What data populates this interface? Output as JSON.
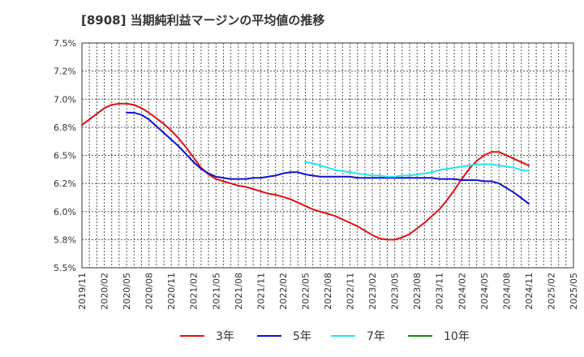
{
  "header": {
    "title": "[8908]  当期純利益マージンの平均値の推移"
  },
  "chart_data": {
    "type": "line",
    "title": "[8908]  当期純利益マージンの平均値の推移",
    "xlabel": "",
    "ylabel": "",
    "ylim": [
      5.5,
      7.5
    ],
    "y_unit": "%",
    "yticks": [
      "7.5%",
      "7.2%",
      "7.0%",
      "6.8%",
      "6.5%",
      "6.2%",
      "6.0%",
      "5.8%",
      "5.5%"
    ],
    "xticks": [
      "2019/11",
      "2020/02",
      "2020/05",
      "2020/08",
      "2020/11",
      "2021/02",
      "2021/05",
      "2021/08",
      "2021/11",
      "2022/02",
      "2022/05",
      "2022/08",
      "2022/11",
      "2023/02",
      "2023/05",
      "2023/08",
      "2023/11",
      "2024/02",
      "2024/05",
      "2024/08",
      "2024/11",
      "2025/02",
      "2025/05"
    ],
    "grid": true,
    "legend_position": "bottom",
    "series": [
      {
        "name": "3年",
        "color": "#dd1111",
        "x": [
          "2019/11",
          "2019/12",
          "2020/01",
          "2020/02",
          "2020/03",
          "2020/04",
          "2020/05",
          "2020/06",
          "2020/07",
          "2020/08",
          "2020/09",
          "2020/10",
          "2020/11",
          "2020/12",
          "2021/01",
          "2021/02",
          "2021/03",
          "2021/04",
          "2021/05",
          "2021/06",
          "2021/07",
          "2021/08",
          "2021/09",
          "2021/10",
          "2021/11",
          "2021/12",
          "2022/01",
          "2022/02",
          "2022/03",
          "2022/04",
          "2022/05",
          "2022/06",
          "2022/07",
          "2022/08",
          "2022/09",
          "2022/10",
          "2022/11",
          "2022/12",
          "2023/01",
          "2023/02",
          "2023/03",
          "2023/04",
          "2023/05",
          "2023/06",
          "2023/07",
          "2023/08",
          "2023/09",
          "2023/10",
          "2023/11",
          "2023/12",
          "2024/01",
          "2024/02",
          "2024/03",
          "2024/04",
          "2024/05",
          "2024/06",
          "2024/07",
          "2024/08",
          "2024/09",
          "2024/10",
          "2024/11"
        ],
        "values": [
          6.77,
          6.82,
          6.87,
          6.92,
          6.95,
          6.96,
          6.96,
          6.95,
          6.92,
          6.88,
          6.83,
          6.78,
          6.72,
          6.65,
          6.57,
          6.48,
          6.39,
          6.33,
          6.29,
          6.27,
          6.25,
          6.23,
          6.22,
          6.2,
          6.18,
          6.16,
          6.15,
          6.13,
          6.11,
          6.08,
          6.05,
          6.02,
          6.0,
          5.98,
          5.96,
          5.93,
          5.9,
          5.87,
          5.83,
          5.79,
          5.76,
          5.75,
          5.75,
          5.77,
          5.8,
          5.85,
          5.9,
          5.96,
          6.02,
          6.1,
          6.19,
          6.29,
          6.38,
          6.45,
          6.5,
          6.53,
          6.53,
          6.5,
          6.47,
          6.44,
          6.41
        ]
      },
      {
        "name": "5年",
        "color": "#1111cc",
        "x": [
          "2020/05",
          "2020/06",
          "2020/07",
          "2020/08",
          "2020/09",
          "2020/10",
          "2020/11",
          "2020/12",
          "2021/01",
          "2021/02",
          "2021/03",
          "2021/04",
          "2021/05",
          "2021/06",
          "2021/07",
          "2021/08",
          "2021/09",
          "2021/10",
          "2021/11",
          "2021/12",
          "2022/01",
          "2022/02",
          "2022/03",
          "2022/04",
          "2022/05",
          "2022/06",
          "2022/07",
          "2022/08",
          "2022/09",
          "2022/10",
          "2022/11",
          "2022/12",
          "2023/01",
          "2023/02",
          "2023/03",
          "2023/04",
          "2023/05",
          "2023/06",
          "2023/07",
          "2023/08",
          "2023/09",
          "2023/10",
          "2023/11",
          "2023/12",
          "2024/01",
          "2024/02",
          "2024/03",
          "2024/04",
          "2024/05",
          "2024/06",
          "2024/07",
          "2024/08",
          "2024/09",
          "2024/10",
          "2024/11"
        ],
        "values": [
          6.88,
          6.88,
          6.86,
          6.82,
          6.76,
          6.7,
          6.64,
          6.58,
          6.51,
          6.44,
          6.38,
          6.34,
          6.31,
          6.3,
          6.29,
          6.29,
          6.29,
          6.3,
          6.3,
          6.31,
          6.32,
          6.34,
          6.35,
          6.35,
          6.33,
          6.32,
          6.31,
          6.31,
          6.31,
          6.31,
          6.31,
          6.3,
          6.3,
          6.3,
          6.3,
          6.3,
          6.3,
          6.3,
          6.3,
          6.3,
          6.3,
          6.3,
          6.29,
          6.29,
          6.29,
          6.28,
          6.28,
          6.28,
          6.27,
          6.27,
          6.25,
          6.21,
          6.17,
          6.12,
          6.07
        ]
      },
      {
        "name": "7年",
        "color": "#22e5ee",
        "x": [
          "2022/05",
          "2022/06",
          "2022/07",
          "2022/08",
          "2022/09",
          "2022/10",
          "2022/11",
          "2022/12",
          "2023/01",
          "2023/02",
          "2023/03",
          "2023/04",
          "2023/05",
          "2023/06",
          "2023/07",
          "2023/08",
          "2023/09",
          "2023/10",
          "2023/11",
          "2023/12",
          "2024/01",
          "2024/02",
          "2024/03",
          "2024/04",
          "2024/05",
          "2024/06",
          "2024/07",
          "2024/08",
          "2024/09",
          "2024/10",
          "2024/11"
        ],
        "values": [
          6.44,
          6.43,
          6.41,
          6.39,
          6.37,
          6.36,
          6.35,
          6.34,
          6.33,
          6.32,
          6.32,
          6.31,
          6.31,
          6.32,
          6.32,
          6.33,
          6.34,
          6.35,
          6.37,
          6.38,
          6.39,
          6.4,
          6.41,
          6.42,
          6.42,
          6.42,
          6.41,
          6.4,
          6.39,
          6.37,
          6.36
        ]
      },
      {
        "name": "10年",
        "color": "#118811",
        "x": [],
        "values": []
      }
    ]
  }
}
